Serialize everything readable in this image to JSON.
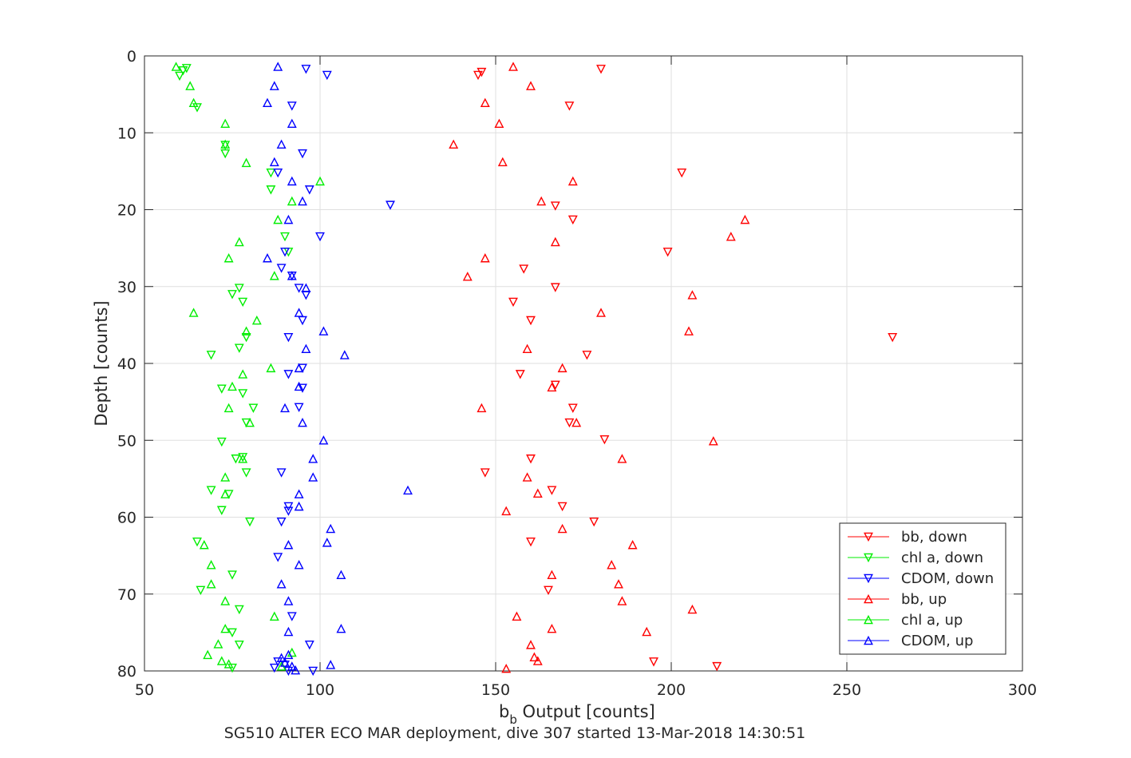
{
  "chart_data": {
    "type": "scatter",
    "caption": "SG510 ALTER ECO MAR deployment, dive 307 started 13-Mar-2018 14:30:51",
    "xlabel_main": "b",
    "xlabel_sub": "b",
    "xlabel_rest": " Output [counts]",
    "ylabel": "Depth [counts]",
    "xlim": [
      50,
      300
    ],
    "ylim": [
      0,
      80
    ],
    "y_reversed": true,
    "x_ticks": [
      50,
      100,
      150,
      200,
      250,
      300
    ],
    "y_ticks": [
      0,
      10,
      20,
      30,
      40,
      50,
      60,
      70,
      80
    ],
    "grid": true,
    "legend_position": "bottom-right",
    "series": [
      {
        "name": "bb, down",
        "color": "#ff0000",
        "marker": "triangle-down",
        "x": [
          180,
          146,
          145,
          171,
          203,
          167,
          172,
          199,
          158,
          167,
          155,
          160,
          263,
          176,
          157,
          167,
          172,
          171,
          181,
          160,
          147,
          166,
          169,
          178,
          160,
          165,
          195,
          213
        ],
        "y": [
          1.7,
          2.1,
          2.5,
          6.5,
          15.2,
          19.5,
          21.3,
          25.5,
          27.7,
          30.1,
          32,
          34.4,
          36.6,
          38.9,
          41.4,
          42.8,
          45.8,
          47.7,
          49.9,
          52.4,
          54.2,
          56.5,
          58.6,
          60.6,
          63.2,
          69.5,
          78.8,
          79.4
        ]
      },
      {
        "name": "chl a, down",
        "color": "#00ee00",
        "marker": "triangle-down",
        "x": [
          62,
          61,
          60,
          65,
          73,
          73,
          86,
          86,
          90,
          91,
          77,
          75,
          78,
          79,
          77,
          69,
          72,
          78,
          81,
          79,
          72,
          78,
          76,
          79,
          69,
          74,
          72,
          80,
          65,
          75,
          66,
          77,
          77,
          75,
          75
        ],
        "y": [
          1.6,
          1.9,
          2.6,
          6.7,
          11.6,
          12.7,
          15.2,
          17.4,
          23.5,
          25.5,
          30.2,
          31,
          32,
          36.6,
          38,
          38.9,
          43.3,
          43.9,
          45.8,
          47.7,
          50.2,
          52.2,
          52.4,
          54.2,
          56.5,
          57,
          59.1,
          60.6,
          63.2,
          67.5,
          69.5,
          72,
          76.6,
          75,
          79.6
        ]
      },
      {
        "name": "CDOM, down",
        "color": "#0000ff",
        "marker": "triangle-down",
        "x": [
          96,
          102,
          92,
          95,
          88,
          97,
          120,
          100,
          90,
          89,
          92,
          94,
          96,
          95,
          91,
          95,
          91,
          95,
          94,
          89,
          91,
          91,
          89,
          88,
          92,
          88,
          87,
          97,
          90,
          98,
          91
        ],
        "y": [
          1.7,
          2.5,
          6.5,
          12.7,
          15.2,
          17.4,
          19.4,
          23.5,
          25.5,
          27.6,
          28.6,
          30.2,
          31.1,
          34.4,
          36.6,
          40.6,
          41.4,
          43.2,
          45.7,
          54.2,
          58.6,
          59.2,
          60.6,
          65.2,
          72.9,
          78.8,
          79.6,
          76.6,
          79.2,
          80,
          80
        ]
      },
      {
        "name": "bb, up",
        "color": "#ff0000",
        "marker": "triangle-up",
        "x": [
          155,
          160,
          147,
          151,
          138,
          152,
          172,
          163,
          221,
          217,
          167,
          147,
          142,
          206,
          180,
          205,
          159,
          169,
          166,
          146,
          173,
          212,
          186,
          159,
          162,
          153,
          169,
          189,
          183,
          166,
          185,
          186,
          206,
          156,
          166,
          193,
          160,
          161,
          162,
          153
        ],
        "y": [
          1.4,
          3.9,
          6.1,
          8.8,
          11.5,
          13.8,
          16.3,
          18.9,
          21.3,
          23.5,
          24.2,
          26.3,
          28.7,
          31.1,
          33.4,
          35.8,
          38.1,
          40.6,
          43.1,
          45.8,
          47.7,
          50.1,
          52.4,
          54.8,
          56.9,
          59.2,
          61.5,
          63.6,
          66.2,
          67.5,
          68.7,
          70.9,
          72,
          72.9,
          74.5,
          74.9,
          76.6,
          78.2,
          78.7,
          79.7
        ]
      },
      {
        "name": "chl a, up",
        "color": "#00ee00",
        "marker": "triangle-up",
        "x": [
          59,
          63,
          64,
          73,
          73,
          79,
          100,
          92,
          88,
          77,
          74,
          87,
          64,
          82,
          79,
          86,
          78,
          75,
          74,
          80,
          78,
          73,
          73,
          67,
          69,
          69,
          73,
          87,
          71,
          72,
          73,
          74,
          68,
          92,
          89
        ],
        "y": [
          1.4,
          3.9,
          6.1,
          8.8,
          11.5,
          13.9,
          16.3,
          18.9,
          21.3,
          24.2,
          26.3,
          28.6,
          33.4,
          34.4,
          35.8,
          40.6,
          41.4,
          43,
          45.8,
          47.7,
          52.4,
          54.8,
          57,
          63.6,
          66.2,
          68.7,
          70.9,
          72.9,
          76.5,
          78.7,
          74.5,
          79.1,
          77.9,
          77.6,
          79.4
        ]
      },
      {
        "name": "CDOM, up",
        "color": "#0000ff",
        "marker": "triangle-up",
        "x": [
          88,
          87,
          85,
          92,
          89,
          87,
          92,
          95,
          91,
          85,
          92,
          96,
          94,
          101,
          96,
          107,
          94,
          94,
          90,
          95,
          101,
          98,
          98,
          125,
          94,
          94,
          91,
          103,
          102,
          91,
          94,
          106,
          89,
          106,
          91,
          91,
          89,
          90,
          103,
          92,
          93
        ],
        "y": [
          1.4,
          3.9,
          6.1,
          8.8,
          11.5,
          13.8,
          16.3,
          18.9,
          21.3,
          26.3,
          28.6,
          30.2,
          33.4,
          35.8,
          38.1,
          38.9,
          40.6,
          43,
          45.8,
          47.7,
          50,
          52.4,
          54.8,
          56.5,
          57,
          58.6,
          63.6,
          61.5,
          63.3,
          70.9,
          66.2,
          67.5,
          68.7,
          74.5,
          74.9,
          77.9,
          78.3,
          78.9,
          79.2,
          79.4,
          79.9
        ]
      }
    ]
  }
}
